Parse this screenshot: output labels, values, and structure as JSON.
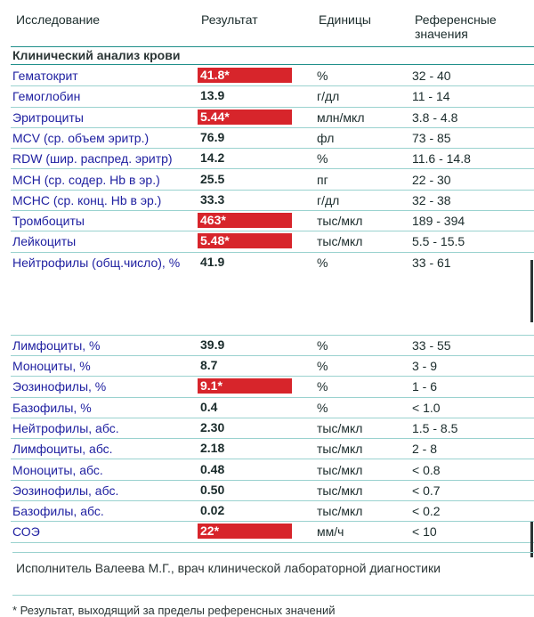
{
  "header": {
    "test": "Исследование",
    "result": "Результат",
    "units": "Единицы",
    "reference": "Референсные значения"
  },
  "section_title": "Клинический анализ крови",
  "rows": [
    {
      "name": "Гематокрит",
      "result": "41.8*",
      "flag": true,
      "unit": "%",
      "ref": "32 - 40"
    },
    {
      "name": "Гемоглобин",
      "result": "13.9",
      "flag": false,
      "unit": "г/дл",
      "ref": "11 - 14"
    },
    {
      "name": "Эритроциты",
      "result": "5.44*",
      "flag": true,
      "unit": "млн/мкл",
      "ref": "3.8 - 4.8"
    },
    {
      "name": "MCV (ср. объем эритр.)",
      "result": "76.9",
      "flag": false,
      "unit": "фл",
      "ref": "73 - 85"
    },
    {
      "name": "RDW (шир. распред. эритр)",
      "result": "14.2",
      "flag": false,
      "unit": "%",
      "ref": "11.6 - 14.8"
    },
    {
      "name": "MCH (ср. содер. Hb в эр.)",
      "result": "25.5",
      "flag": false,
      "unit": "пг",
      "ref": "22 - 30"
    },
    {
      "name": "MCHC (ср. конц. Hb в эр.)",
      "result": "33.3",
      "flag": false,
      "unit": "г/дл",
      "ref": "32 - 38"
    },
    {
      "name": "Тромбоциты",
      "result": "463*",
      "flag": true,
      "unit": "тыс/мкл",
      "ref": "189 - 394"
    },
    {
      "name": "Лейкоциты",
      "result": "5.48*",
      "flag": true,
      "unit": "тыс/мкл",
      "ref": "5.5 - 15.5"
    },
    {
      "name": "Нейтрофилы (общ.число), %",
      "result": "41.9",
      "flag": false,
      "unit": "%",
      "ref": "33 - 61"
    },
    {
      "name": "Лимфоциты, %",
      "result": "39.9",
      "flag": false,
      "unit": "%",
      "ref": "33 - 55"
    },
    {
      "name": "Моноциты, %",
      "result": "8.7",
      "flag": false,
      "unit": "%",
      "ref": "3 - 9"
    },
    {
      "name": "Эозинофилы, %",
      "result": "9.1*",
      "flag": true,
      "unit": "%",
      "ref": "1 - 6"
    },
    {
      "name": "Базофилы, %",
      "result": "0.4",
      "flag": false,
      "unit": "%",
      "ref": "< 1.0"
    },
    {
      "name": "Нейтрофилы, абс.",
      "result": "2.30",
      "flag": false,
      "unit": "тыс/мкл",
      "ref": "1.5 - 8.5"
    },
    {
      "name": "Лимфоциты, абс.",
      "result": "2.18",
      "flag": false,
      "unit": "тыс/мкл",
      "ref": "2 - 8"
    },
    {
      "name": "Моноциты, абс.",
      "result": "0.48",
      "flag": false,
      "unit": "тыс/мкл",
      "ref": "< 0.8"
    },
    {
      "name": "Эозинофилы, абс.",
      "result": "0.50",
      "flag": false,
      "unit": "тыс/мкл",
      "ref": "< 0.7"
    },
    {
      "name": "Базофилы, абс.",
      "result": "0.02",
      "flag": false,
      "unit": "тыс/мкл",
      "ref": "< 0.2"
    },
    {
      "name": "СОЭ",
      "result": "22*",
      "flag": true,
      "unit": "мм/ч",
      "ref": "< 10"
    }
  ],
  "performer": "Исполнитель Валеева  М.Г., врач клинической лабораторной диагностики",
  "footnote": "* Результат, выходящий за пределы референсных значений",
  "colors": {
    "flag": "#d7252b",
    "name_text": "#1e1fa0",
    "rule": "#1f8f8a"
  }
}
